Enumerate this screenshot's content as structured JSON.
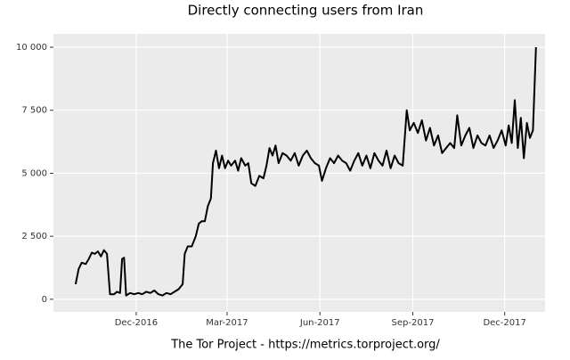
{
  "chart_data": {
    "type": "line",
    "title": "Directly connecting users from Iran",
    "caption": "The Tor Project - https://metrics.torproject.org/",
    "x": [
      "2016-10-02",
      "2016-10-05",
      "2016-10-08",
      "2016-10-12",
      "2016-10-15",
      "2016-10-18",
      "2016-10-21",
      "2016-10-24",
      "2016-10-27",
      "2016-10-30",
      "2016-11-02",
      "2016-11-05",
      "2016-11-09",
      "2016-11-12",
      "2016-11-15",
      "2016-11-17",
      "2016-11-19",
      "2016-11-21",
      "2016-11-25",
      "2016-11-29",
      "2016-12-03",
      "2016-12-07",
      "2016-12-11",
      "2016-12-15",
      "2016-12-19",
      "2016-12-23",
      "2016-12-27",
      "2016-12-31",
      "2017-01-04",
      "2017-01-08",
      "2017-01-12",
      "2017-01-16",
      "2017-01-18",
      "2017-01-21",
      "2017-01-25",
      "2017-01-29",
      "2017-02-01",
      "2017-02-04",
      "2017-02-07",
      "2017-02-10",
      "2017-02-13",
      "2017-02-15",
      "2017-02-18",
      "2017-02-21",
      "2017-02-24",
      "2017-02-27",
      "2017-03-02",
      "2017-03-05",
      "2017-03-09",
      "2017-03-12",
      "2017-03-15",
      "2017-03-19",
      "2017-03-22",
      "2017-03-25",
      "2017-03-29",
      "2017-04-02",
      "2017-04-06",
      "2017-04-09",
      "2017-04-12",
      "2017-04-15",
      "2017-04-18",
      "2017-04-21",
      "2017-04-25",
      "2017-04-29",
      "2017-05-03",
      "2017-05-07",
      "2017-05-11",
      "2017-05-15",
      "2017-05-19",
      "2017-05-23",
      "2017-05-27",
      "2017-05-31",
      "2017-06-03",
      "2017-06-07",
      "2017-06-11",
      "2017-06-15",
      "2017-06-19",
      "2017-06-23",
      "2017-06-27",
      "2017-07-01",
      "2017-07-05",
      "2017-07-09",
      "2017-07-13",
      "2017-07-17",
      "2017-07-21",
      "2017-07-25",
      "2017-07-29",
      "2017-08-02",
      "2017-08-06",
      "2017-08-10",
      "2017-08-14",
      "2017-08-18",
      "2017-08-22",
      "2017-08-26",
      "2017-08-29",
      "2017-09-02",
      "2017-09-06",
      "2017-09-10",
      "2017-09-14",
      "2017-09-18",
      "2017-09-22",
      "2017-09-26",
      "2017-09-30",
      "2017-10-04",
      "2017-10-08",
      "2017-10-12",
      "2017-10-15",
      "2017-10-19",
      "2017-10-23",
      "2017-10-27",
      "2017-10-31",
      "2017-11-04",
      "2017-11-08",
      "2017-11-12",
      "2017-11-16",
      "2017-11-20",
      "2017-11-24",
      "2017-11-28",
      "2017-12-02",
      "2017-12-05",
      "2017-12-08",
      "2017-12-11",
      "2017-12-14",
      "2017-12-17",
      "2017-12-20",
      "2017-12-23",
      "2017-12-26",
      "2017-12-29",
      "2018-01-01"
    ],
    "series": [
      {
        "color": "#000000",
        "values": [
          600,
          1200,
          1450,
          1400,
          1600,
          1850,
          1800,
          1900,
          1700,
          1950,
          1800,
          200,
          200,
          300,
          250,
          1600,
          1650,
          150,
          250,
          200,
          250,
          200,
          300,
          250,
          350,
          200,
          150,
          250,
          200,
          300,
          400,
          600,
          1800,
          2100,
          2100,
          2500,
          3000,
          3100,
          3100,
          3700,
          4000,
          5400,
          5900,
          5200,
          5700,
          5200,
          5500,
          5300,
          5500,
          5100,
          5600,
          5300,
          5400,
          4600,
          4500,
          4900,
          4800,
          5300,
          6000,
          5700,
          6100,
          5400,
          5800,
          5700,
          5500,
          5800,
          5300,
          5700,
          5900,
          5600,
          5400,
          5300,
          4700,
          5200,
          5600,
          5400,
          5700,
          5500,
          5400,
          5100,
          5500,
          5800,
          5300,
          5700,
          5200,
          5800,
          5500,
          5300,
          5900,
          5200,
          5700,
          5400,
          5300,
          7500,
          6700,
          7000,
          6600,
          7100,
          6300,
          6800,
          6100,
          6500,
          5800,
          6000,
          6200,
          6000,
          7300,
          6100,
          6500,
          6800,
          6000,
          6500,
          6200,
          6100,
          6500,
          6000,
          6300,
          6700,
          6100,
          6900,
          6200,
          7900,
          6000,
          7200,
          5600,
          7000,
          6400,
          6700,
          10000
        ]
      }
    ],
    "xlim": [
      "2016-09-10",
      "2018-01-10"
    ],
    "xticks": [
      {
        "value": "2016-12-01",
        "label": "Dec-2016"
      },
      {
        "value": "2017-03-01",
        "label": "Mar-2017"
      },
      {
        "value": "2017-06-01",
        "label": "Jun-2017"
      },
      {
        "value": "2017-09-01",
        "label": "Sep-2017"
      },
      {
        "value": "2017-12-01",
        "label": "Dec-2017"
      }
    ],
    "ylim": [
      -500,
      10530
    ],
    "yticks": [
      0,
      {
        "value": 2500,
        "label": "2 500"
      },
      {
        "value": 5000,
        "label": "5 000"
      },
      {
        "value": 7500,
        "label": "7 500"
      },
      {
        "value": 10000,
        "label": "10 000"
      }
    ],
    "grid": true
  }
}
